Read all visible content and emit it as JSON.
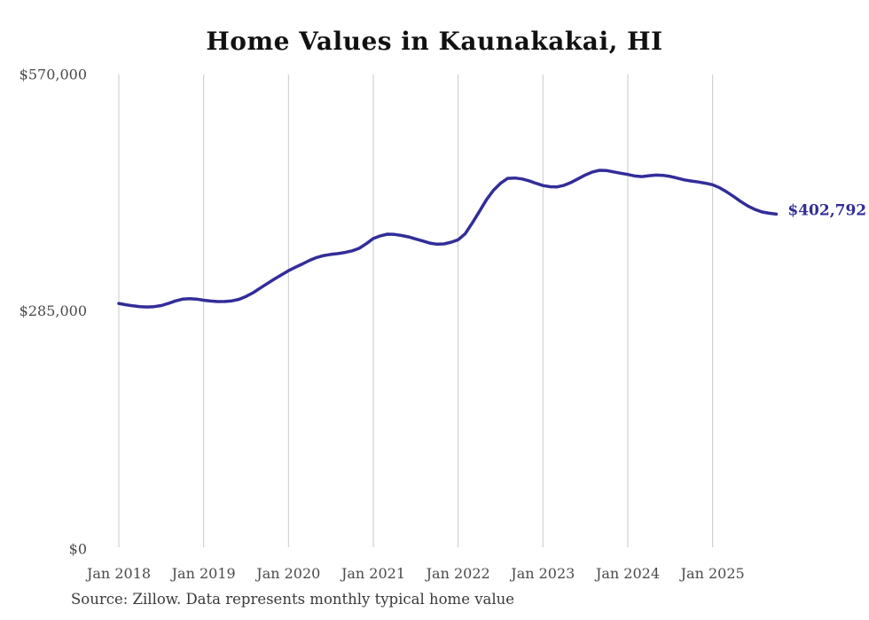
{
  "chart": {
    "title": "Home Values in Kaunakakai, HI",
    "source_note": "Source: Zillow. Data represents monthly typical home value",
    "end_label": "$402,792",
    "colors": {
      "line": "#322d99",
      "grid": "#c8c8c8",
      "axis_text": "#4a4a4a",
      "title_text": "#111111",
      "source_text": "#3a3a3a",
      "background": "#ffffff"
    }
  },
  "chart_data": {
    "type": "line",
    "title": "Home Values in Kaunakakai, HI",
    "xlabel": "",
    "ylabel": "",
    "x_tick_labels": [
      "Jan 2018",
      "Jan 2019",
      "Jan 2020",
      "Jan 2021",
      "Jan 2022",
      "Jan 2023",
      "Jan 2024",
      "Jan 2025"
    ],
    "y_ticks": [
      0,
      285000,
      570000
    ],
    "y_tick_labels": [
      "$0",
      "$285,000",
      "$570,000"
    ],
    "ylim": [
      0,
      570000
    ],
    "grid": "vertical-only",
    "legend": "none",
    "annotation": "$402,792",
    "end_value": 402792,
    "series": [
      {
        "name": "Typical home value",
        "start_month": "2018-01",
        "end_month": "2025-10",
        "frequency": "monthly",
        "values": [
          295000,
          293500,
          292200,
          291200,
          290800,
          291200,
          292500,
          295000,
          298000,
          300200,
          300800,
          300300,
          298900,
          297900,
          297300,
          297400,
          298200,
          300000,
          303500,
          308000,
          313500,
          319000,
          324500,
          329500,
          334500,
          338800,
          342800,
          347000,
          350500,
          352800,
          354200,
          355200,
          356500,
          358500,
          361500,
          367000,
          373300,
          376500,
          378600,
          378200,
          377000,
          375300,
          372800,
          370300,
          367800,
          366500,
          366800,
          368800,
          371800,
          379000,
          392000,
          406000,
          420000,
          431500,
          440000,
          445800,
          446300,
          445200,
          443000,
          440000,
          437200,
          435800,
          435600,
          437500,
          441000,
          445500,
          450000,
          453500,
          455600,
          455200,
          453600,
          452000,
          450500,
          448700,
          448000,
          449000,
          449800,
          449500,
          448200,
          446200,
          444000,
          442600,
          441500,
          440000,
          438100,
          434500,
          429500,
          423800,
          417800,
          412500,
          408300,
          405300,
          403800,
          402792
        ]
      }
    ]
  }
}
